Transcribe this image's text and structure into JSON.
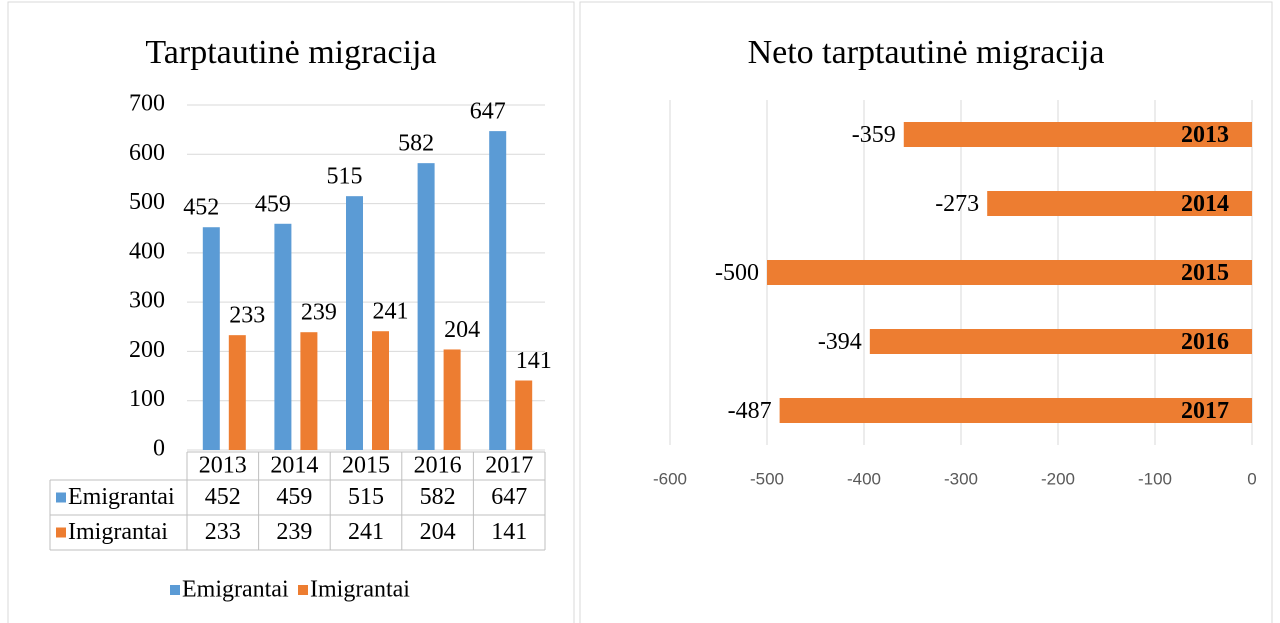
{
  "chart_data": [
    {
      "type": "bar",
      "title": "Tarptautinė migracija",
      "categories": [
        "2013",
        "2014",
        "2015",
        "2016",
        "2017"
      ],
      "series": [
        {
          "name": "Emigrantai",
          "color": "#5b9bd5",
          "values": [
            452,
            459,
            515,
            582,
            647
          ]
        },
        {
          "name": "Imigrantai",
          "color": "#ed7d31",
          "values": [
            233,
            239,
            241,
            204,
            141
          ]
        }
      ],
      "ylim": [
        0,
        700
      ],
      "yticks": [
        0,
        100,
        200,
        300,
        400,
        500,
        600,
        700
      ],
      "grid": true,
      "legend": "bottom",
      "data_table": true
    },
    {
      "type": "barh",
      "title": "Neto tarptautinė migracija",
      "categories": [
        "2013",
        "2014",
        "2015",
        "2016",
        "2017"
      ],
      "values": [
        -359,
        -273,
        -500,
        -394,
        -487
      ],
      "color": "#ed7d31",
      "xlim": [
        -600,
        0
      ],
      "xticks": [
        -600,
        -500,
        -400,
        -300,
        -200,
        -100,
        0
      ],
      "grid": true
    }
  ]
}
